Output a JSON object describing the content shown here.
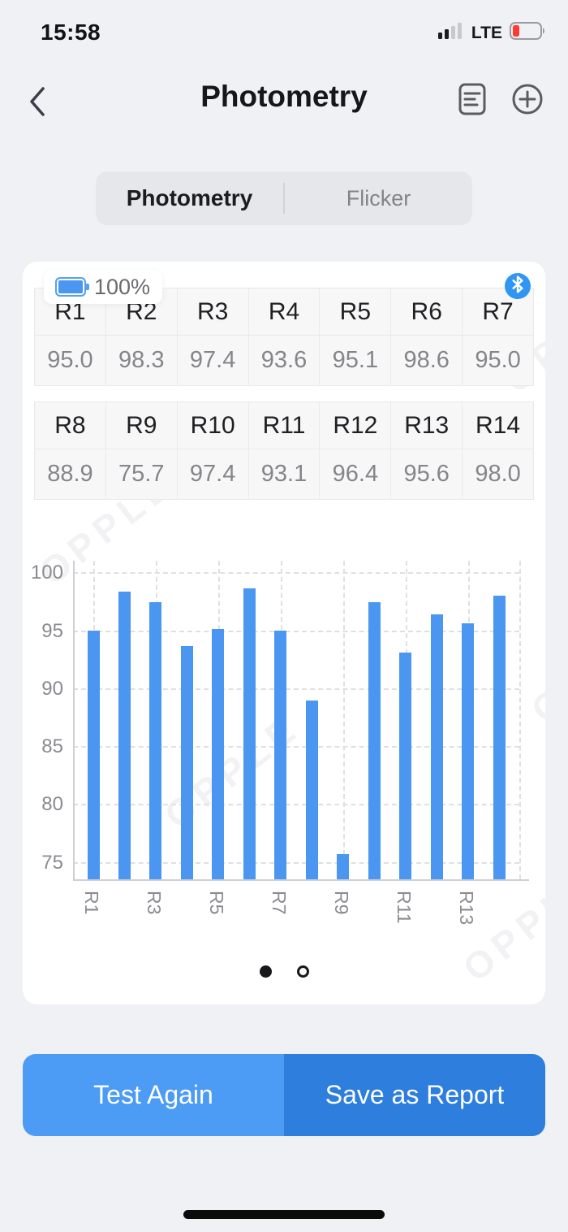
{
  "status_bar": {
    "time": "15:58",
    "network": "LTE"
  },
  "nav": {
    "title": "Photometry"
  },
  "tabs": {
    "photometry": "Photometry",
    "flicker": "Flicker"
  },
  "device": {
    "battery_label": "100%"
  },
  "watermark": {
    "text": "OPPLE"
  },
  "tables": [
    {
      "headers": [
        "R1",
        "R2",
        "R3",
        "R4",
        "R5",
        "R6",
        "R7"
      ],
      "values": [
        "95.0",
        "98.3",
        "97.4",
        "93.6",
        "95.1",
        "98.6",
        "95.0"
      ]
    },
    {
      "headers": [
        "R8",
        "R9",
        "R10",
        "R11",
        "R12",
        "R13",
        "R14"
      ],
      "values": [
        "88.9",
        "75.7",
        "97.4",
        "93.1",
        "96.4",
        "95.6",
        "98.0"
      ]
    }
  ],
  "chart_data": {
    "type": "bar",
    "title": "",
    "categories": [
      "R1",
      "R2",
      "R3",
      "R4",
      "R5",
      "R6",
      "R7",
      "R8",
      "R9",
      "R10",
      "R11",
      "R12",
      "R13",
      "R14"
    ],
    "values": [
      95.0,
      98.3,
      97.4,
      93.6,
      95.1,
      98.6,
      95.0,
      88.9,
      75.7,
      97.4,
      93.1,
      96.4,
      95.6,
      98.0
    ],
    "xlabel": "",
    "ylabel": "",
    "yticks": [
      75,
      80,
      85,
      90,
      95,
      100
    ],
    "ylim": [
      73.5,
      101
    ],
    "x_tick_labels_shown": [
      "R1",
      "R3",
      "R5",
      "R7",
      "R9",
      "R11",
      "R13"
    ],
    "grid": "dashed",
    "legend": "none",
    "bar_color": "#4b96f0"
  },
  "pagination": {
    "pages": 2,
    "active_index": 0
  },
  "actions": {
    "test_again": "Test Again",
    "save_report": "Save as Report"
  },
  "colors": {
    "accent_blue": "#4b96f0",
    "button_light_blue": "#4c9bf5",
    "button_dark_blue": "#2d7edd",
    "bluetooth_blue": "#2f96f3",
    "battery_warning_red": "#ff3b30"
  }
}
